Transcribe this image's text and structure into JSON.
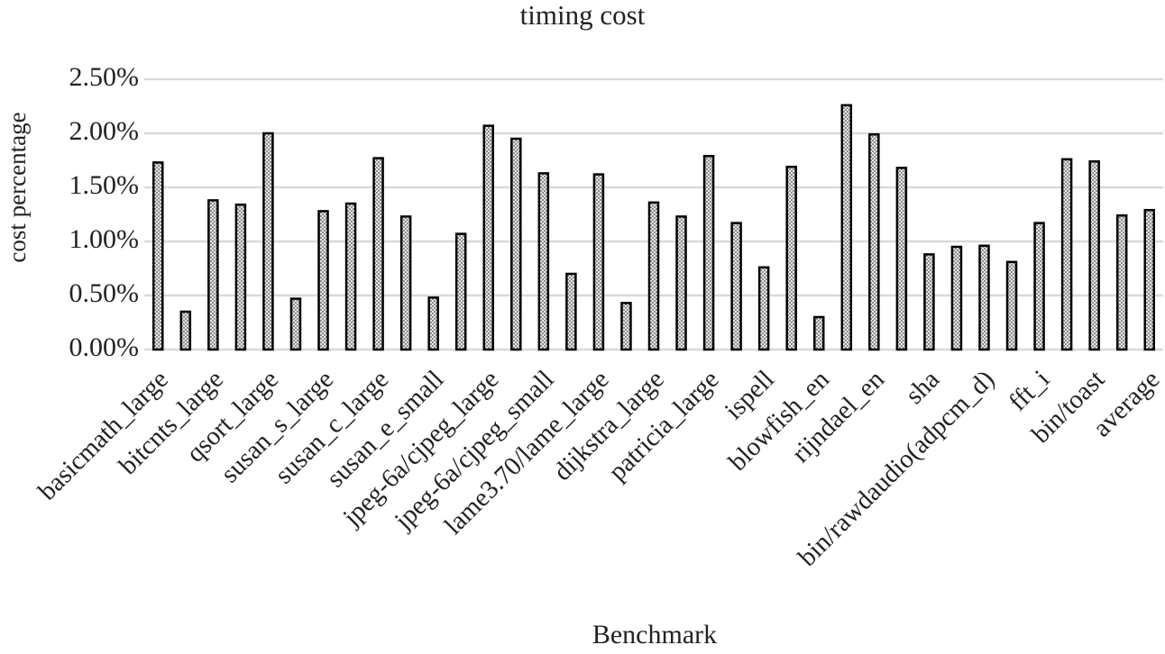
{
  "chart_data": {
    "type": "bar",
    "title": "timing cost",
    "x_label": "Benchmark",
    "y_label": "cost percentage",
    "categories": [
      "basicmath_large",
      null,
      "bitcnts_large",
      null,
      "qsort_large",
      null,
      "susan_s_large",
      null,
      "susan_c_large",
      null,
      "susan_e_small",
      null,
      "jpeg-6a/cjpeg_large",
      null,
      "jpeg-6a/cjpeg_small",
      null,
      "lame3.70/lame_large",
      null,
      "dijkstra_large",
      null,
      "patricia_large",
      null,
      "ispell",
      null,
      "blowfish_en",
      null,
      "rijndael_en",
      null,
      "sha",
      null,
      "bin/rawdaudio(adpcm_d)",
      null,
      "fft_i",
      null,
      "bin/toast",
      null,
      "average"
    ],
    "values": [
      1.73,
      0.35,
      1.38,
      1.34,
      2.0,
      0.47,
      1.28,
      1.35,
      1.77,
      1.23,
      0.48,
      1.07,
      2.07,
      1.95,
      1.63,
      0.7,
      1.62,
      0.43,
      1.36,
      1.23,
      1.79,
      1.17,
      0.76,
      1.69,
      0.3,
      2.26,
      1.99,
      1.68,
      0.88,
      0.95,
      0.96,
      0.81,
      1.17,
      1.76,
      1.74,
      1.24,
      1.29
    ],
    "color": "#000000",
    "ylim": [
      0,
      2.5
    ],
    "yticks": [
      {
        "value": 0,
        "label": "0.00%"
      },
      {
        "value": 0.5,
        "label": "0.50%"
      },
      {
        "value": 1.0,
        "label": "1.00%"
      },
      {
        "value": 1.5,
        "label": "1.50%"
      },
      {
        "value": 2.0,
        "label": "2.00%"
      },
      {
        "value": 2.5,
        "label": "2.50%"
      }
    ],
    "grid": true
  }
}
